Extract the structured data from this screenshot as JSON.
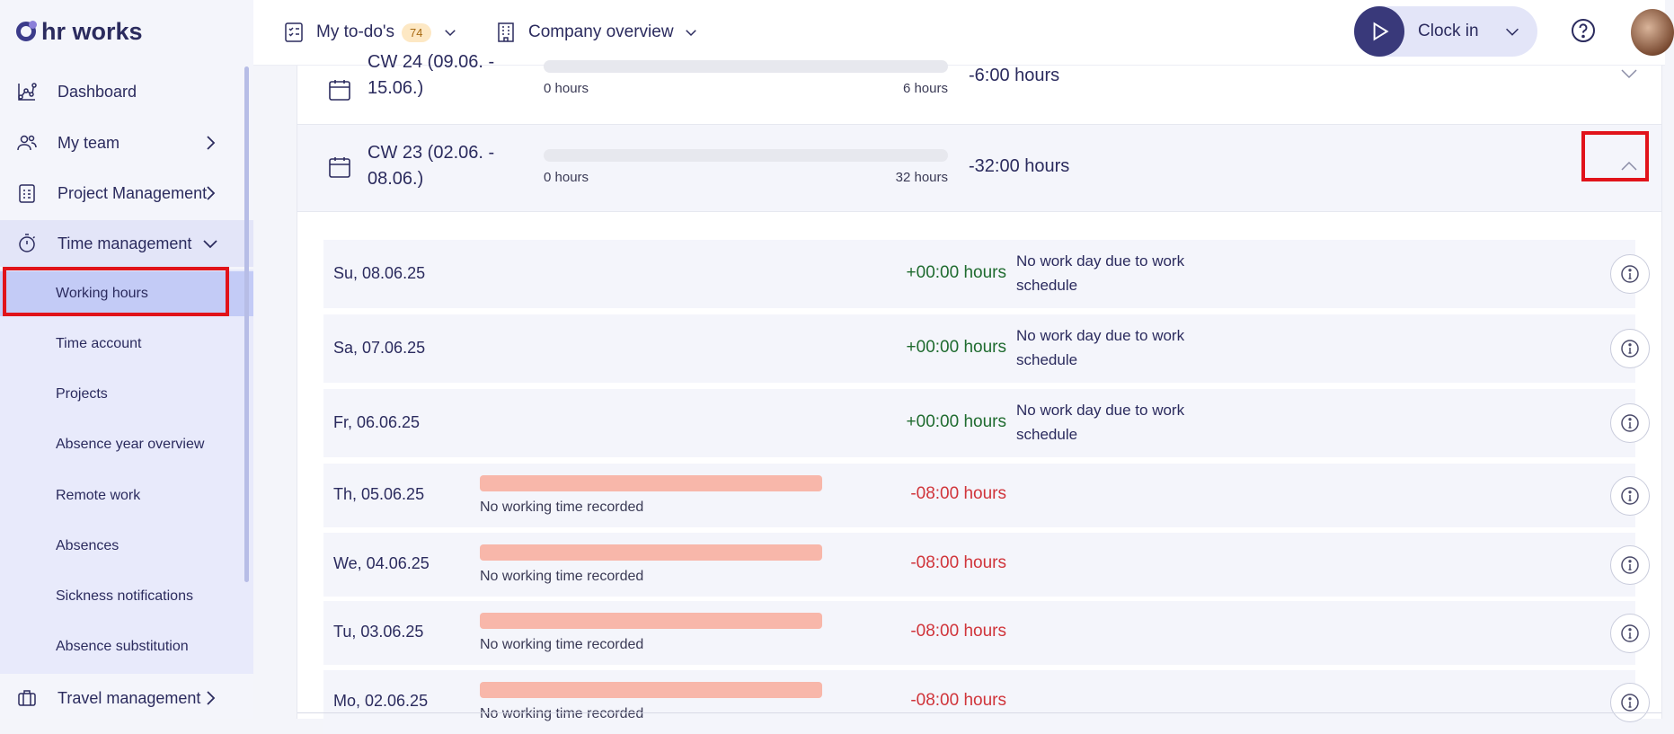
{
  "brand": {
    "logo_text": "hr works"
  },
  "sidebar": {
    "items": [
      {
        "label": "Dashboard",
        "icon": "dashboard-icon"
      },
      {
        "label": "My team",
        "icon": "team-icon"
      },
      {
        "label": "Project Management",
        "icon": "clipboard-icon"
      },
      {
        "label": "Time management",
        "icon": "stopwatch-icon"
      },
      {
        "label": "Travel management",
        "icon": "luggage-icon"
      }
    ],
    "sub_items": [
      "Working hours",
      "Time account",
      "Projects",
      "Absence year overview",
      "Remote work",
      "Absences",
      "Sickness notifications",
      "Absence substitution"
    ],
    "selected_sub_item": "Working hours"
  },
  "topbar": {
    "todos_label": "My to-do's",
    "todos_count": "74",
    "company_label": "Company overview",
    "clock_in_label": "Clock in"
  },
  "weeks": [
    {
      "title": "CW 24 (09.06. - 15.06.)",
      "min_label": "0 hours",
      "max_label": "6 hours",
      "balance": "-6:00 hours",
      "expanded": false
    },
    {
      "title": "CW 23 (02.06. - 08.06.)",
      "min_label": "0 hours",
      "max_label": "32 hours",
      "balance": "-32:00 hours",
      "expanded": true
    }
  ],
  "days": [
    {
      "date": "Su, 08.06.25",
      "hours": "+00:00 hours",
      "note": "No work day due to work schedule",
      "bar_note": ""
    },
    {
      "date": "Sa, 07.06.25",
      "hours": "+00:00 hours",
      "note": "No work day due to work schedule",
      "bar_note": ""
    },
    {
      "date": "Fr, 06.06.25",
      "hours": "+00:00 hours",
      "note": "No work day due to work schedule",
      "bar_note": ""
    },
    {
      "date": "Th, 05.06.25",
      "hours": "-08:00 hours",
      "note": "",
      "bar_note": "No working time recorded"
    },
    {
      "date": "We, 04.06.25",
      "hours": "-08:00 hours",
      "note": "",
      "bar_note": "No working time recorded"
    },
    {
      "date": "Tu, 03.06.25",
      "hours": "-08:00 hours",
      "note": "",
      "bar_note": "No working time recorded"
    },
    {
      "date": "Mo, 02.06.25",
      "hours": "-08:00 hours",
      "note": "",
      "bar_note": "No working time recorded"
    }
  ],
  "colors": {
    "accent": "#39397a",
    "highlight": "#e1131a",
    "positive": "#1f6b2f",
    "negative": "#d0343a",
    "missing_bar": "#f8b7aa"
  }
}
